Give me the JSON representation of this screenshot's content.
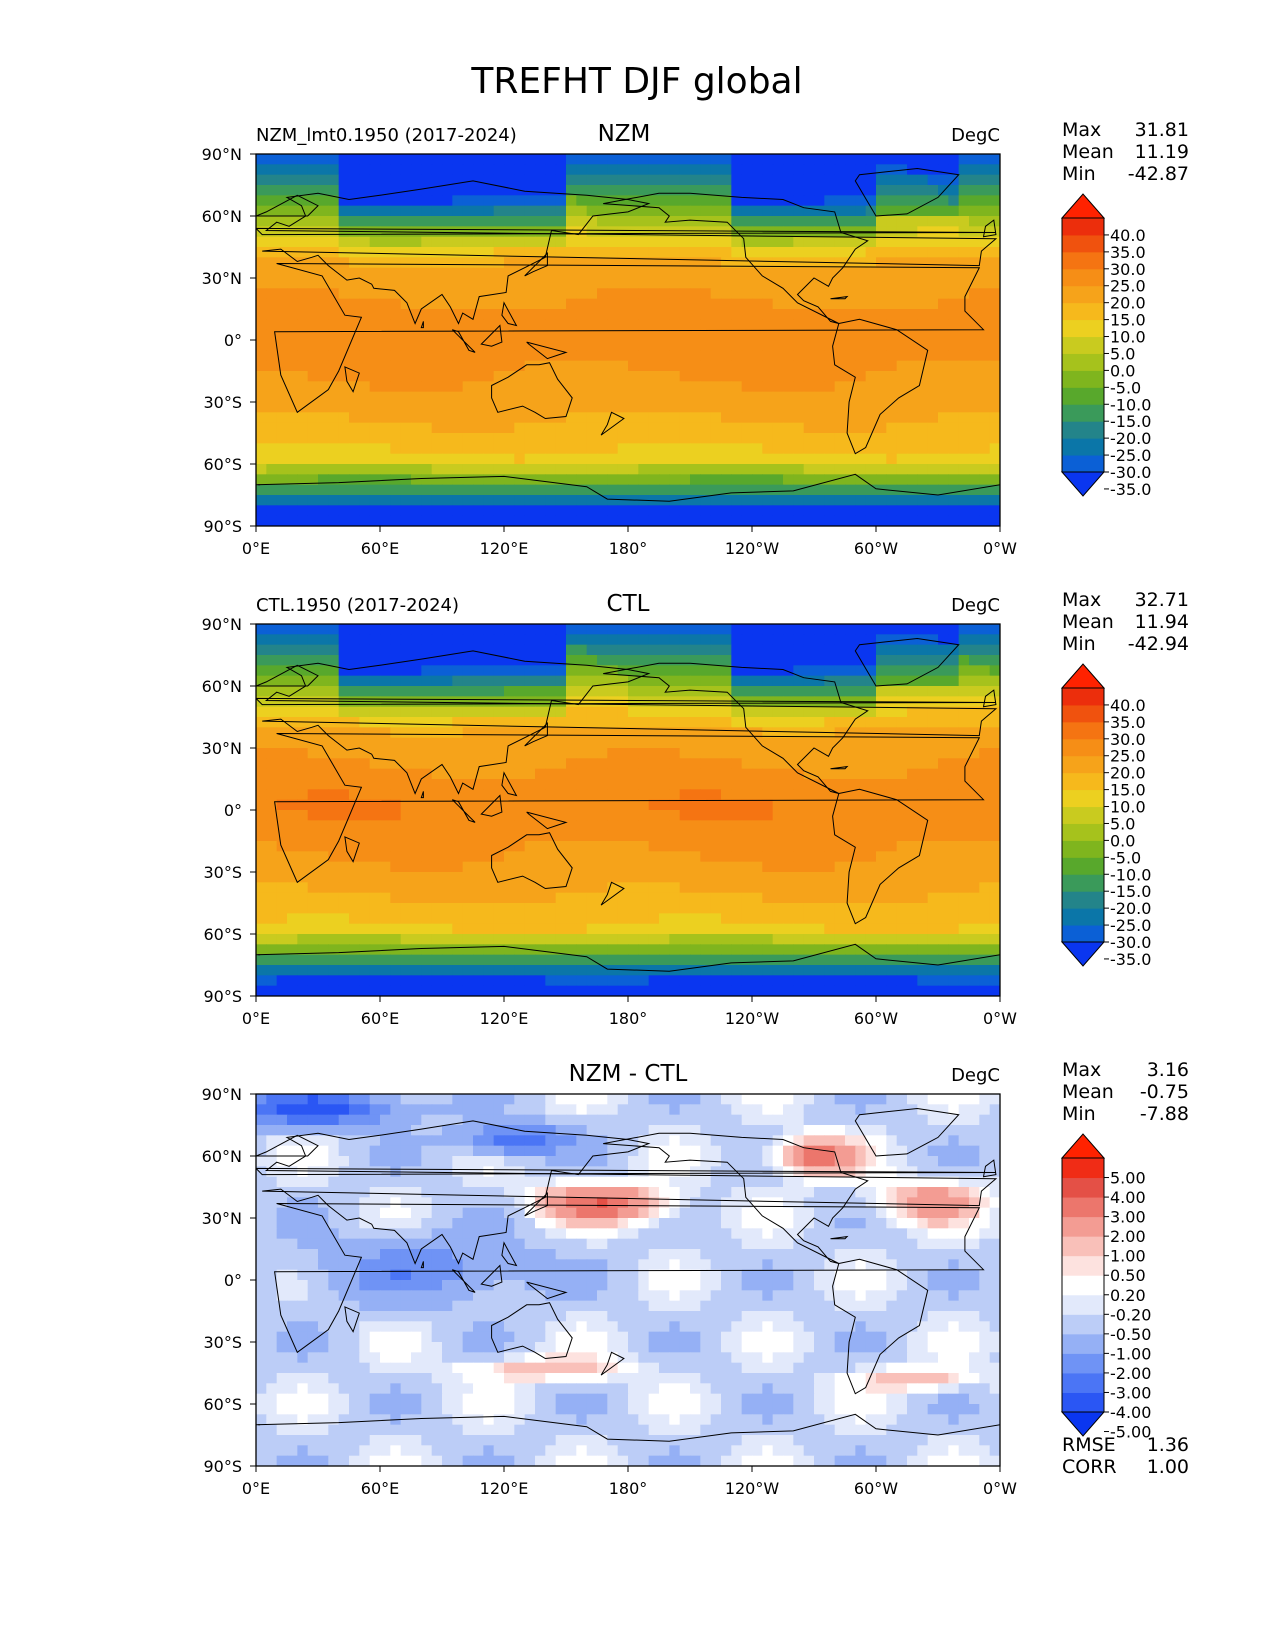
{
  "title": "TREFHT DJF global",
  "lat_ticks": [
    "90°N",
    "60°N",
    "30°N",
    "0°",
    "30°S",
    "60°S",
    "90°S"
  ],
  "lon_ticks": [
    "0°E",
    "60°E",
    "120°E",
    "180°",
    "120°W",
    "60°W",
    "0°W"
  ],
  "stat_labels": {
    "max": "Max",
    "mean": "Mean",
    "min": "Min",
    "rmse": "RMSE",
    "corr": "CORR"
  },
  "colors": {
    "abs": [
      "#0a36f0",
      "#0b60d6",
      "#0b76a8",
      "#23848a",
      "#3a9a5a",
      "#58a82c",
      "#7fb51e",
      "#a6c21c",
      "#c9cb1f",
      "#ecd020",
      "#f6b91c",
      "#f6a31a",
      "#f68e16",
      "#f57412",
      "#f0520e",
      "#ec2e0c",
      "#ff2200"
    ],
    "diff": [
      "#0a36f0",
      "#2a56f4",
      "#4b75f5",
      "#6f93f5",
      "#95b0f5",
      "#bccdf7",
      "#e2e9fb",
      "#ffffff",
      "#fde2df",
      "#f9c0b9",
      "#f39c93",
      "#ec766c",
      "#e45046",
      "#f02c16",
      "#ff2200"
    ],
    "coast": "#000000"
  },
  "panels": [
    {
      "id": "nzm",
      "left_label": "NZM_lmt0.1950 (2017-2024)",
      "center_label": "NZM",
      "right_label": "DegC",
      "stats": {
        "max": "31.81",
        "mean": "11.19",
        "min": "-42.87"
      },
      "colorbar_ticks": [
        "40.0",
        "35.0",
        "30.0",
        "25.0",
        "20.0",
        "15.0",
        "10.0",
        "5.0",
        "0.0",
        "-5.0",
        "-10.0",
        "-15.0",
        "-20.0",
        "-25.0",
        "-30.0",
        "-35.0"
      ],
      "field": "abs"
    },
    {
      "id": "ctl",
      "left_label": "CTL.1950 (2017-2024)",
      "center_label": "CTL",
      "right_label": "DegC",
      "stats": {
        "max": "32.71",
        "mean": "11.94",
        "min": "-42.94"
      },
      "colorbar_ticks": [
        "40.0",
        "35.0",
        "30.0",
        "25.0",
        "20.0",
        "15.0",
        "10.0",
        "5.0",
        "0.0",
        "-5.0",
        "-10.0",
        "-15.0",
        "-20.0",
        "-25.0",
        "-30.0",
        "-35.0"
      ],
      "field": "abs"
    },
    {
      "id": "diff",
      "left_label": "",
      "center_label": "NZM - CTL",
      "right_label": "DegC",
      "stats": {
        "max": "3.16",
        "mean": "-0.75",
        "min": "-7.88",
        "rmse": "1.36",
        "corr": "1.00"
      },
      "colorbar_ticks": [
        "5.00",
        "4.00",
        "3.00",
        "2.00",
        "1.00",
        "0.50",
        "0.20",
        "-0.20",
        "-0.50",
        "-1.00",
        "-2.00",
        "-3.00",
        "-4.00",
        "-5.00"
      ],
      "field": "diff"
    }
  ]
}
